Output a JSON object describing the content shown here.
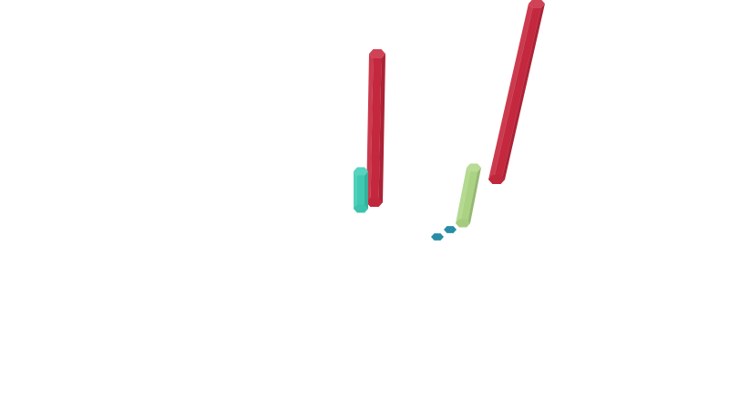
{
  "chart_data": {
    "type": "bar",
    "projection": "3d",
    "bar_shape": "hexagonal-prism",
    "axes_visible": false,
    "grid": false,
    "legend": "none",
    "title": "",
    "xlabel": "",
    "ylabel": "",
    "zlabel": "",
    "bars": [
      {
        "id": "b1",
        "value": 10,
        "color": "#c8293f"
      },
      {
        "id": "b2",
        "value": 12,
        "color": "#c8293f"
      },
      {
        "id": "b3",
        "value": 3,
        "color": "#40cdb6"
      },
      {
        "id": "b4",
        "value": 3.8,
        "color": "#aed686"
      },
      {
        "id": "b5",
        "value": 0.08,
        "color": "#0b7d99"
      },
      {
        "id": "b6",
        "value": 0.08,
        "color": "#0b7d99"
      }
    ]
  }
}
